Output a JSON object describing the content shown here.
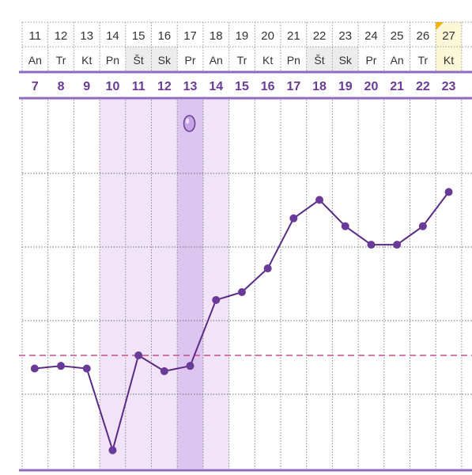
{
  "calendar": {
    "dates": [
      "11",
      "12",
      "13",
      "14",
      "15",
      "16",
      "17",
      "18",
      "19",
      "20",
      "21",
      "22",
      "23",
      "24",
      "25",
      "26",
      "27"
    ],
    "weekdays": [
      "An",
      "Tr",
      "Kt",
      "Pn",
      "Št",
      "Sk",
      "Pr",
      "An",
      "Tr",
      "Kt",
      "Pn",
      "Št",
      "Sk",
      "Pr",
      "An",
      "Tr",
      "Kt"
    ],
    "weekend_flags": [
      false,
      false,
      false,
      false,
      true,
      true,
      false,
      false,
      false,
      false,
      false,
      true,
      true,
      false,
      false,
      false,
      false
    ],
    "today_index": 16,
    "cycle_days": [
      "7",
      "8",
      "9",
      "10",
      "11",
      "12",
      "13",
      "14",
      "15",
      "16",
      "17",
      "18",
      "19",
      "20",
      "21",
      "22",
      "23"
    ]
  },
  "fertility": {
    "fertile_window_days": [
      "10",
      "11",
      "12",
      "13",
      "14"
    ],
    "ovulation_day": "13",
    "ovulation_marker_icon": "egg-icon"
  },
  "chart_data": {
    "type": "line",
    "x": [
      "7",
      "8",
      "9",
      "10",
      "11",
      "12",
      "13",
      "14",
      "15",
      "16",
      "17",
      "18",
      "19",
      "20",
      "21",
      "22",
      "23"
    ],
    "series": [
      {
        "values": [
          2.3,
          2.4,
          2.3,
          -0.8,
          2.8,
          2.2,
          2.4,
          4.9,
          5.2,
          6.1,
          8.0,
          8.7,
          7.7,
          7.0,
          7.0,
          7.7,
          9.0
        ]
      }
    ],
    "coverline": 2.8,
    "ylim": [
      -1.5,
      12.5
    ],
    "grid": true
  },
  "colors": {
    "line": "#5b2a86",
    "point": "#6a3a98",
    "header_text": "#333333",
    "cycle_text": "#6a3a98",
    "accent_rule": "#8e6bbf",
    "fertile_fill": "#f1e3f8",
    "ovulation_fill": "#dcc5ee",
    "coverline": "#c0508a",
    "weekend_fill": "#ececec",
    "today_fill": "#fbf7d7",
    "today_marker": "#f4b400"
  }
}
